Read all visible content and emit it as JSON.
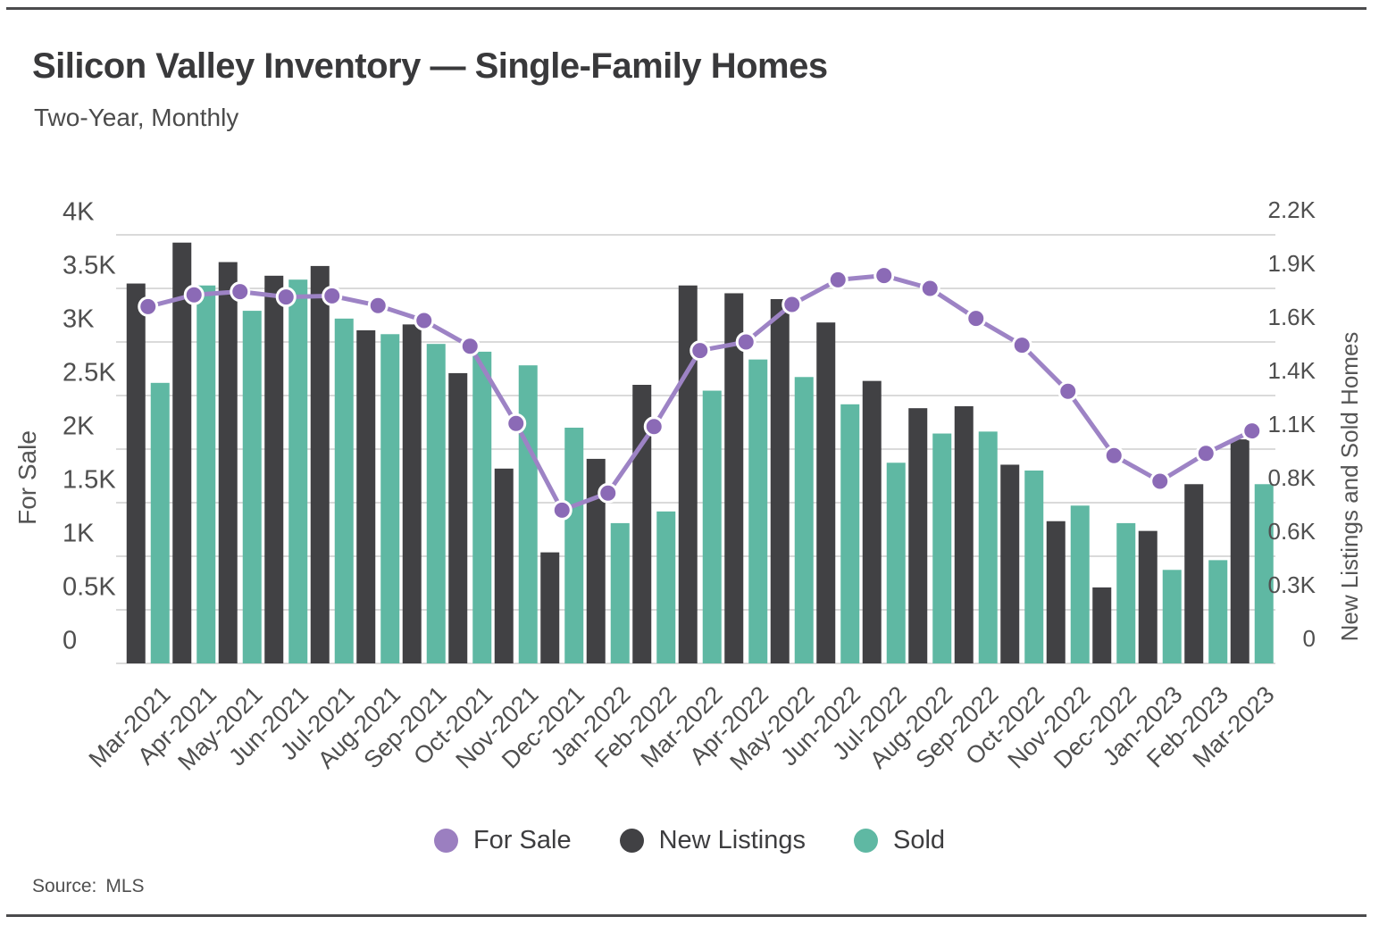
{
  "card": {
    "title": "Silicon Valley Inventory — Single-Family Homes",
    "subtitle": "Two-Year, Monthly"
  },
  "chart_data": {
    "type": "bar",
    "note": "combo chart: grouped bars on right axis + line with dot markers on left axis",
    "categories": [
      "Mar-2021",
      "Apr-2021",
      "May-2021",
      "Jun-2021",
      "Jul-2021",
      "Aug-2021",
      "Sep-2021",
      "Oct-2021",
      "Nov-2021",
      "Dec-2021",
      "Jan-2022",
      "Feb-2022",
      "Mar-2022",
      "Apr-2022",
      "May-2022",
      "Jun-2022",
      "Jul-2022",
      "Aug-2022",
      "Sep-2022",
      "Oct-2022",
      "Nov-2022",
      "Dec-2022",
      "Jan-2023",
      "Feb-2023",
      "Mar-2023"
    ],
    "series": [
      {
        "name": "For Sale",
        "type": "line",
        "axis": "left",
        "color": "#9d83c5",
        "marker_color": "#8b6ab6",
        "values": [
          3330,
          3440,
          3470,
          3420,
          3430,
          3340,
          3200,
          2960,
          2240,
          1430,
          1590,
          2210,
          2920,
          3000,
          3350,
          3580,
          3620,
          3500,
          3220,
          2970,
          2540,
          1940,
          1700,
          1960,
          2170
        ]
      },
      {
        "name": "New Listings",
        "type": "bar",
        "axis": "right",
        "color": "#414144",
        "values": [
          1950,
          2160,
          2060,
          1990,
          2040,
          1710,
          1740,
          1490,
          1000,
          570,
          1050,
          1430,
          1940,
          1900,
          1870,
          1750,
          1450,
          1310,
          1320,
          1020,
          730,
          390,
          680,
          920,
          1150
        ]
      },
      {
        "name": "Sold",
        "type": "bar",
        "axis": "right",
        "color": "#5fb8a3",
        "values": [
          1440,
          1940,
          1810,
          1970,
          1770,
          1690,
          1640,
          1600,
          1530,
          1210,
          720,
          780,
          1400,
          1560,
          1470,
          1330,
          1030,
          1180,
          1190,
          990,
          810,
          720,
          480,
          530,
          920
        ]
      }
    ],
    "left_axis": {
      "title": "For Sale",
      "min": 0,
      "max": 4000,
      "tick_values": [
        0,
        500,
        1000,
        1500,
        2000,
        2500,
        3000,
        3500,
        4000
      ],
      "tick_labels": [
        "0",
        "0.5K",
        "1K",
        "1.5K",
        "2K",
        "2.5K",
        "3K",
        "3.5K",
        "4K"
      ]
    },
    "right_axis": {
      "title": "New Listings and Sold Homes",
      "min": 0,
      "max": 2200,
      "tick_values": [
        0,
        275,
        550,
        825,
        1100,
        1375,
        1650,
        1925,
        2200
      ],
      "tick_labels": [
        "0",
        "0.3K",
        "0.6K",
        "0.8K",
        "1.1K",
        "1.4K",
        "1.6K",
        "1.9K",
        "2.2K"
      ]
    },
    "grid": true,
    "grid_color": "#dadada",
    "legend_position": "bottom"
  },
  "legend": {
    "items": [
      {
        "label": "For Sale",
        "color": "#9b7fc0"
      },
      {
        "label": "New Listings",
        "color": "#414144"
      },
      {
        "label": "Sold",
        "color": "#5fb8a3"
      }
    ]
  },
  "source": {
    "label": "Source:",
    "value": "MLS"
  }
}
